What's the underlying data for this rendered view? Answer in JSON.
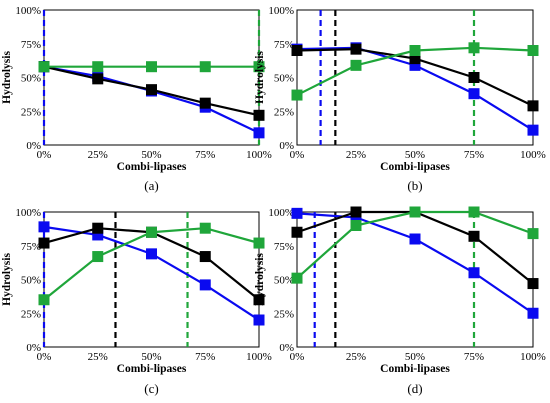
{
  "colors": {
    "blue": "#0a0af0",
    "black": "#000000",
    "green": "#1fa63a",
    "frame": "#000000"
  },
  "chart_data": [
    {
      "type": "line",
      "caption": "(a)",
      "xlabel": "Combi-lipases",
      "ylabel": "Hydrolysis",
      "categories": [
        "0%",
        "25%",
        "50%",
        "75%",
        "100%"
      ],
      "y_ticks": [
        "0%",
        "25%",
        "50%",
        "75%",
        "100%"
      ],
      "ylim": [
        0,
        100
      ],
      "grid": false,
      "legend": "none",
      "series": [
        {
          "color": "blue",
          "values": [
            58,
            51,
            40,
            28,
            9
          ]
        },
        {
          "color": "black",
          "values": [
            58,
            49,
            41,
            31,
            22
          ]
        },
        {
          "color": "green",
          "values": [
            58,
            58,
            58,
            58,
            58
          ]
        }
      ],
      "vlines": [
        {
          "color": "blue",
          "x": 0
        },
        {
          "color": "green",
          "x": 4
        }
      ]
    },
    {
      "type": "line",
      "caption": "(b)",
      "xlabel": "Combi-lipases",
      "ylabel": "Hydrolysis",
      "categories": [
        "0%",
        "25%",
        "50%",
        "75%",
        "100%"
      ],
      "y_ticks": [
        "0%",
        "25%",
        "50%",
        "75%",
        "100%"
      ],
      "ylim": [
        0,
        100
      ],
      "grid": false,
      "legend": "none",
      "series": [
        {
          "color": "blue",
          "values": [
            71,
            72,
            59,
            38,
            11
          ]
        },
        {
          "color": "black",
          "values": [
            70,
            71,
            64,
            50,
            29
          ]
        },
        {
          "color": "green",
          "values": [
            37,
            59,
            70,
            72,
            70
          ]
        }
      ],
      "vlines": [
        {
          "color": "blue",
          "x": 0.4
        },
        {
          "color": "black",
          "x": 0.65
        },
        {
          "color": "green",
          "x": 3
        }
      ]
    },
    {
      "type": "line",
      "caption": "(c)",
      "xlabel": "Combi-lipases",
      "ylabel": "Hydrolysis",
      "categories": [
        "0%",
        "25%",
        "50%",
        "75%",
        "100%"
      ],
      "y_ticks": [
        "0%",
        "25%",
        "50%",
        "75%",
        "100%"
      ],
      "ylim": [
        0,
        100
      ],
      "grid": false,
      "legend": "none",
      "series": [
        {
          "color": "blue",
          "values": [
            89,
            83,
            69,
            46,
            20
          ]
        },
        {
          "color": "black",
          "values": [
            77,
            88,
            85,
            67,
            35
          ]
        },
        {
          "color": "green",
          "values": [
            35,
            67,
            85,
            88,
            77
          ]
        }
      ],
      "vlines": [
        {
          "color": "blue",
          "x": 0
        },
        {
          "color": "black",
          "x": 1.33
        },
        {
          "color": "green",
          "x": 2.67
        }
      ]
    },
    {
      "type": "line",
      "caption": "(d)",
      "xlabel": "Combi-lipases",
      "ylabel": "Hydrolysis",
      "categories": [
        "0%",
        "25%",
        "50%",
        "75%",
        "100%"
      ],
      "y_ticks": [
        "0%",
        "25%",
        "50%",
        "75%",
        "100%"
      ],
      "ylim": [
        0,
        100
      ],
      "grid": false,
      "legend": "none",
      "series": [
        {
          "color": "blue",
          "values": [
            99,
            96,
            80,
            55,
            25
          ]
        },
        {
          "color": "black",
          "values": [
            85,
            100,
            100,
            82,
            47
          ]
        },
        {
          "color": "green",
          "values": [
            51,
            90,
            100,
            100,
            84
          ]
        }
      ],
      "vlines": [
        {
          "color": "blue",
          "x": 0.3
        },
        {
          "color": "black",
          "x": 0.65
        },
        {
          "color": "green",
          "x": 3
        }
      ]
    }
  ]
}
